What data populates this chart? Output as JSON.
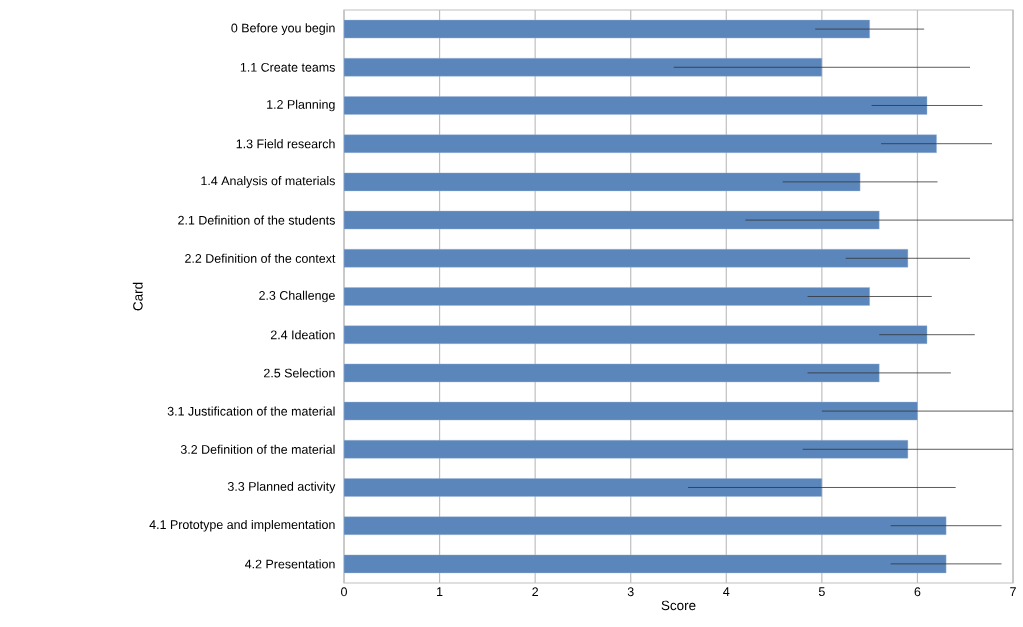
{
  "chart_data": {
    "type": "bar",
    "orientation": "horizontal",
    "xlabel": "Score",
    "ylabel": "Card",
    "categories": [
      "0 Before you begin",
      "1.1 Create teams",
      "1.2 Planning",
      "1.3 Field research",
      "1.4 Analysis of materials",
      "2.1 Definition of the students",
      "2.2 Definition of the context",
      "2.3 Challenge",
      "2.4 Ideation",
      "2.5 Selection",
      "3.1 Justification of the material",
      "3.2 Definition of the material",
      "3.3 Planned activity",
      "4.1 Prototype and implementation",
      "4.2 Presentation"
    ],
    "values": [
      5.5,
      5.0,
      6.1,
      6.2,
      5.4,
      5.6,
      5.9,
      5.5,
      6.1,
      5.6,
      6.0,
      5.9,
      5.0,
      6.3,
      6.3
    ],
    "errors": [
      0.57,
      1.55,
      0.58,
      0.58,
      0.81,
      1.4,
      0.65,
      0.65,
      0.5,
      0.75,
      1.0,
      1.1,
      1.4,
      0.58,
      0.58
    ],
    "color": "#5b86bb",
    "xlim": [
      0,
      7
    ],
    "xticks": [
      0,
      1,
      2,
      3,
      4,
      5,
      6,
      7
    ],
    "grid": "x"
  }
}
